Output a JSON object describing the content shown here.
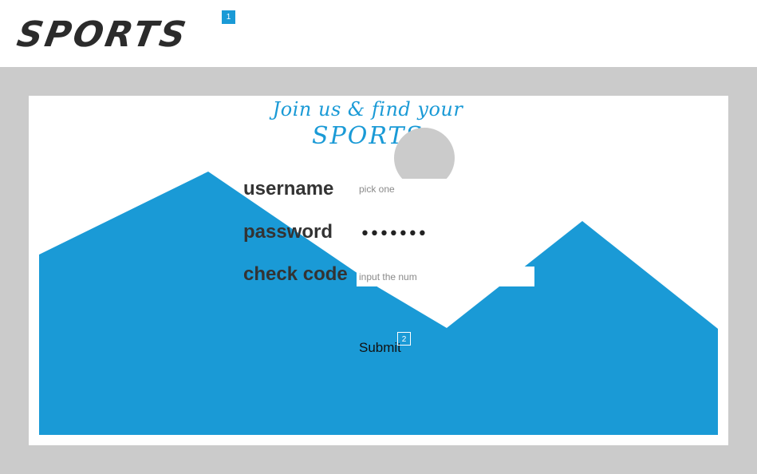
{
  "header": {
    "logo": "SPORTS",
    "badge": "1"
  },
  "card": {
    "tagline_prefix": "Join us & find your ",
    "tagline_highlight": "SPORTS"
  },
  "form": {
    "username": {
      "label": "username",
      "placeholder": "pick one",
      "value": ""
    },
    "password": {
      "label": "password",
      "masked_value": "•••••••"
    },
    "check_code": {
      "label": "check code",
      "placeholder": "input the num",
      "value": ""
    },
    "submit_label": "Submit",
    "submit_badge": "2"
  },
  "colors": {
    "accent": "#1a9ad6",
    "background": "#cbcbcb",
    "text": "#333333"
  }
}
